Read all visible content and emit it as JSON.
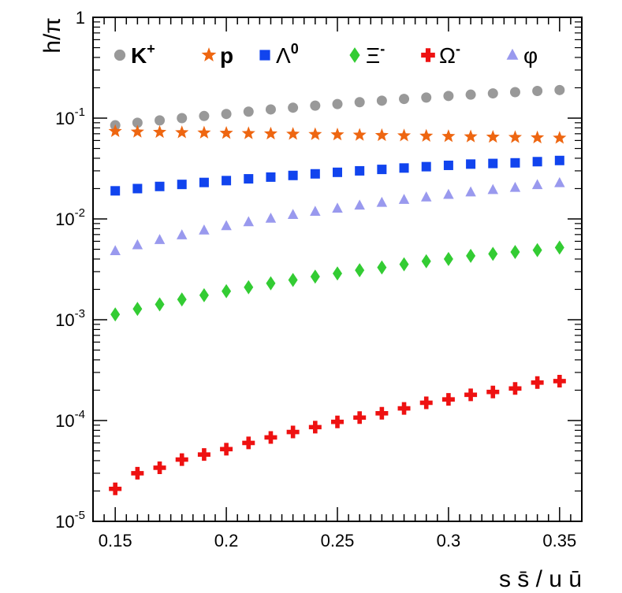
{
  "chart_data": {
    "type": "scatter",
    "x_scale": "linear",
    "y_scale": "log",
    "xlim": [
      0.14,
      0.36
    ],
    "ylim": [
      1e-05,
      1
    ],
    "xlabel": "s s̄ / u ū",
    "ylabel": "h/π",
    "x_ticks": [
      "0.15",
      "0.2",
      "0.25",
      "0.3",
      "0.35"
    ],
    "y_ticks": [
      {
        "mantissa": "10",
        "exp": "-5"
      },
      {
        "mantissa": "10",
        "exp": "-4"
      },
      {
        "mantissa": "10",
        "exp": "-3"
      },
      {
        "mantissa": "10",
        "exp": "-2"
      },
      {
        "mantissa": "10",
        "exp": "-1"
      },
      {
        "mantissa": "1",
        "exp": ""
      }
    ],
    "x": [
      0.15,
      0.16,
      0.17,
      0.18,
      0.19,
      0.2,
      0.21,
      0.22,
      0.23,
      0.24,
      0.25,
      0.26,
      0.27,
      0.28,
      0.29,
      0.3,
      0.31,
      0.32,
      0.33,
      0.34,
      0.35
    ],
    "series": [
      {
        "name": "K",
        "sup": "+",
        "bold": true,
        "marker": "circle",
        "color": "#999999",
        "values": [
          0.085,
          0.09,
          0.095,
          0.1,
          0.105,
          0.11,
          0.116,
          0.122,
          0.127,
          0.133,
          0.138,
          0.144,
          0.149,
          0.155,
          0.16,
          0.166,
          0.171,
          0.176,
          0.181,
          0.186,
          0.19
        ]
      },
      {
        "name": "p",
        "sup": "",
        "bold": true,
        "marker": "star",
        "color": "#ee6611",
        "values": [
          0.074,
          0.073,
          0.0725,
          0.072,
          0.0715,
          0.071,
          0.0705,
          0.07,
          0.0695,
          0.069,
          0.0685,
          0.068,
          0.0675,
          0.067,
          0.0665,
          0.066,
          0.0655,
          0.065,
          0.0645,
          0.064,
          0.0635
        ]
      },
      {
        "name": "Λ",
        "sup": "0",
        "bold": false,
        "marker": "square",
        "color": "#1144ee",
        "values": [
          0.019,
          0.02,
          0.021,
          0.022,
          0.023,
          0.024,
          0.025,
          0.026,
          0.027,
          0.028,
          0.029,
          0.03,
          0.031,
          0.032,
          0.033,
          0.034,
          0.035,
          0.0355,
          0.036,
          0.037,
          0.038
        ]
      },
      {
        "name": "Ξ",
        "sup": "-",
        "bold": false,
        "marker": "diamond",
        "color": "#33cc33",
        "values": [
          0.00113,
          0.00128,
          0.00142,
          0.00159,
          0.00175,
          0.00192,
          0.0021,
          0.0023,
          0.00248,
          0.00268,
          0.00288,
          0.0031,
          0.0033,
          0.00355,
          0.0038,
          0.004,
          0.0043,
          0.0045,
          0.0047,
          0.0049,
          0.0052
        ]
      },
      {
        "name": "Ω",
        "sup": "-",
        "bold": false,
        "marker": "cross",
        "color": "#ee1111",
        "values": [
          2.1e-05,
          3e-05,
          3.4e-05,
          4.1e-05,
          4.6e-05,
          5.2e-05,
          6e-05,
          6.8e-05,
          7.7e-05,
          8.6e-05,
          9.7e-05,
          0.000107,
          0.000118,
          0.000132,
          0.00015,
          0.000162,
          0.00018,
          0.000192,
          0.000208,
          0.000238,
          0.000246
        ]
      },
      {
        "name": "φ",
        "sup": "",
        "bold": false,
        "marker": "triangle",
        "color": "#9999ee",
        "values": [
          0.0048,
          0.0055,
          0.0062,
          0.0069,
          0.0077,
          0.0085,
          0.0093,
          0.0101,
          0.011,
          0.0118,
          0.0127,
          0.0136,
          0.0145,
          0.0155,
          0.0164,
          0.0174,
          0.0184,
          0.0194,
          0.0204,
          0.0217,
          0.0227
        ]
      }
    ]
  }
}
